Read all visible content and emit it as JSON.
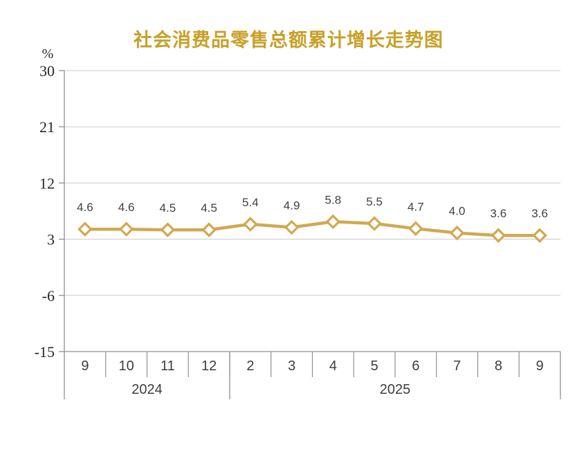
{
  "chart_data": {
    "type": "line",
    "title": "社会消费品零售总额累计增长走势图",
    "unit_label": "%",
    "y_ticks": [
      30,
      21,
      12,
      3,
      -6,
      -15
    ],
    "ylim": [
      -15,
      30
    ],
    "categories": [
      "9",
      "10",
      "11",
      "12",
      "2",
      "3",
      "4",
      "5",
      "6",
      "7",
      "8",
      "9"
    ],
    "year_groups": [
      {
        "label": "2024",
        "span": 4
      },
      {
        "label": "2025",
        "span": 8
      }
    ],
    "series": [
      {
        "values": [
          4.6,
          4.6,
          4.5,
          4.5,
          5.4,
          4.9,
          5.8,
          5.5,
          4.7,
          4.0,
          3.6,
          3.6
        ]
      }
    ],
    "data_labels": [
      "4.6",
      "4.6",
      "4.5",
      "4.5",
      "5.4",
      "4.9",
      "5.8",
      "5.5",
      "4.7",
      "4.0",
      "3.6",
      "3.6"
    ],
    "grid": true,
    "legend": "none",
    "colors": {
      "title": "#C8A028",
      "line": "#D2A850",
      "marker_fill": "#FFFFFF",
      "grid": "#C9C9C9",
      "axis": "#8F8F8F",
      "label_text": "#404040"
    }
  }
}
